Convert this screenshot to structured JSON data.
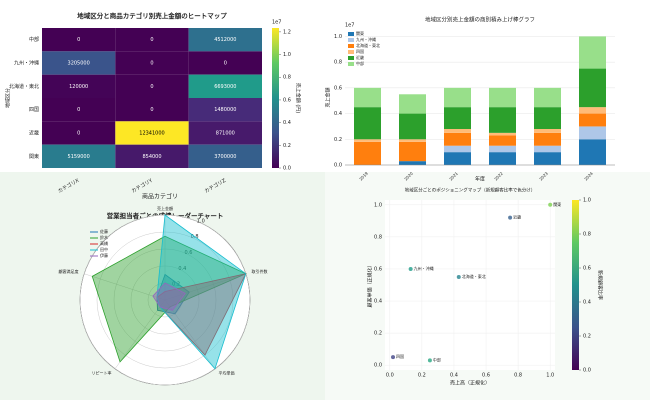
{
  "chart_data": [
    {
      "type": "heatmap",
      "title": "地域区分と商品カテゴリ別売上金額のヒートマップ",
      "xlabel": "商品カテゴリ",
      "ylabel": "地域区分",
      "colorbar_label": "売上金額 (円)",
      "colorbar_offset": "1e7",
      "categories": [
        "カテゴリX",
        "カテゴリY",
        "カテゴリZ"
      ],
      "rows": [
        "中部",
        "九州・沖縄",
        "北海道・東北",
        "四国",
        "近畿",
        "関東"
      ],
      "values": [
        [
          0,
          0,
          4512000
        ],
        [
          3205000,
          0,
          0
        ],
        [
          120000,
          0,
          6693000
        ],
        [
          0,
          0,
          1480000
        ],
        [
          0,
          12341000,
          871000
        ],
        [
          5159000,
          854000,
          3700000
        ]
      ],
      "clim": [
        0,
        12341000
      ],
      "cticks": [
        {
          "value": 0,
          "label": "0.0"
        },
        {
          "value": 2000000,
          "label": "0.2"
        },
        {
          "value": 4000000,
          "label": "0.4"
        },
        {
          "value": 6000000,
          "label": "0.6"
        },
        {
          "value": 8000000,
          "label": "0.8"
        },
        {
          "value": 10000000,
          "label": "1.0"
        },
        {
          "value": 12000000,
          "label": "1.2"
        }
      ]
    },
    {
      "type": "bar",
      "title": "地域区分別売上金額の商別積み上げ棒グラフ",
      "xlabel": "年度",
      "ylabel": "売上金額",
      "y_offset": "1e7",
      "categories": [
        "2019",
        "2020",
        "2021",
        "2022",
        "2023",
        "2024"
      ],
      "series": [
        {
          "name": "関東",
          "color": "#1f77b4",
          "values": [
            0,
            300000,
            1000000,
            1000000,
            1000000,
            2000000
          ]
        },
        {
          "name": "九州・沖縄",
          "color": "#aec7e8",
          "values": [
            0,
            0,
            500000,
            500000,
            500000,
            1000000
          ]
        },
        {
          "name": "北海道・東北",
          "color": "#ff7f0e",
          "values": [
            1800000,
            1500000,
            1000000,
            800000,
            1000000,
            1000000
          ]
        },
        {
          "name": "四国",
          "color": "#ffbb78",
          "values": [
            200000,
            200000,
            300000,
            200000,
            300000,
            500000
          ]
        },
        {
          "name": "近畿",
          "color": "#2ca02c",
          "values": [
            2500000,
            2000000,
            1700000,
            2000000,
            1700000,
            3000000
          ]
        },
        {
          "name": "中部",
          "color": "#98df8a",
          "values": [
            1500000,
            1500000,
            1500000,
            1500000,
            1500000,
            2500000
          ]
        }
      ],
      "ylim": [
        0,
        10500000
      ],
      "yticks": [
        {
          "value": 0,
          "label": "0.0"
        },
        {
          "value": 2000000,
          "label": "0.2"
        },
        {
          "value": 4000000,
          "label": "0.4"
        },
        {
          "value": 6000000,
          "label": "0.6"
        },
        {
          "value": 8000000,
          "label": "0.8"
        },
        {
          "value": 10000000,
          "label": "1.0"
        }
      ],
      "grid": true,
      "legend": "upper-left"
    },
    {
      "type": "radar",
      "title": "営業担当者ごとの成績レーダーチャート",
      "categories": [
        "売上金額",
        "取引件数",
        "平均単価",
        "リピート率",
        "顧客満足度"
      ],
      "series": [
        {
          "name": "佐藤",
          "color": "#1f77b4",
          "values": [
            0.3,
            0.3,
            0.2,
            0.15,
            0.1
          ]
        },
        {
          "name": "鈴木",
          "color": "#2ca02c",
          "values": [
            0.75,
            1.0,
            0.1,
            0.9,
            0.9
          ]
        },
        {
          "name": "高橋",
          "color": "#d62728",
          "values": [
            0.1,
            1.0,
            0.8,
            0.1,
            0.1
          ]
        },
        {
          "name": "田中",
          "color": "#17becf",
          "values": [
            1.0,
            1.0,
            1.0,
            0.1,
            0.1
          ]
        },
        {
          "name": "伊藤",
          "color": "#9467bd",
          "values": [
            0.2,
            0.25,
            0.15,
            0.1,
            0.15
          ]
        }
      ],
      "rlim": [
        0,
        1
      ],
      "rticks": [
        0.2,
        0.4,
        0.6,
        0.8,
        {
          "value": 1,
          "label": "1.0"
        }
      ],
      "legend": "upper-left"
    },
    {
      "type": "scatter",
      "title": "地域区分ごとのポジショニングマップ（新規顧客比率で色分け）",
      "xlabel": "売上高（正規化）",
      "ylabel": "顧客単価（正規化）",
      "colorbar_label": "新規顧客比率",
      "labels": [
        "関東",
        "近畿",
        "九州・沖縄",
        "北海道・東北",
        "中部",
        "四国"
      ],
      "x": [
        1.0,
        0.75,
        0.13,
        0.43,
        0.25,
        0.02
      ],
      "values": [
        1.0,
        0.92,
        0.6,
        0.55,
        0.03,
        0.05
      ],
      "color_values": [
        0.8,
        0.3,
        0.55,
        0.45,
        0.6,
        0.2
      ],
      "xlim": [
        -0.03,
        1.03
      ],
      "ylim": [
        -0.03,
        1.03
      ],
      "clim": [
        0,
        1
      ],
      "xticks": [
        {
          "value": 0,
          "label": "0.0"
        },
        0.2,
        0.4,
        0.6,
        0.8,
        {
          "value": 1,
          "label": "1.0"
        }
      ],
      "yticks": [
        {
          "value": 0,
          "label": "0.0"
        },
        0.2,
        0.4,
        0.6,
        0.8,
        {
          "value": 1,
          "label": "1.0"
        }
      ],
      "cticks": [
        {
          "value": 0,
          "label": "0.0"
        },
        0.2,
        0.4,
        0.6,
        0.8,
        {
          "value": 1,
          "label": "1.0"
        }
      ],
      "grid": true
    }
  ]
}
